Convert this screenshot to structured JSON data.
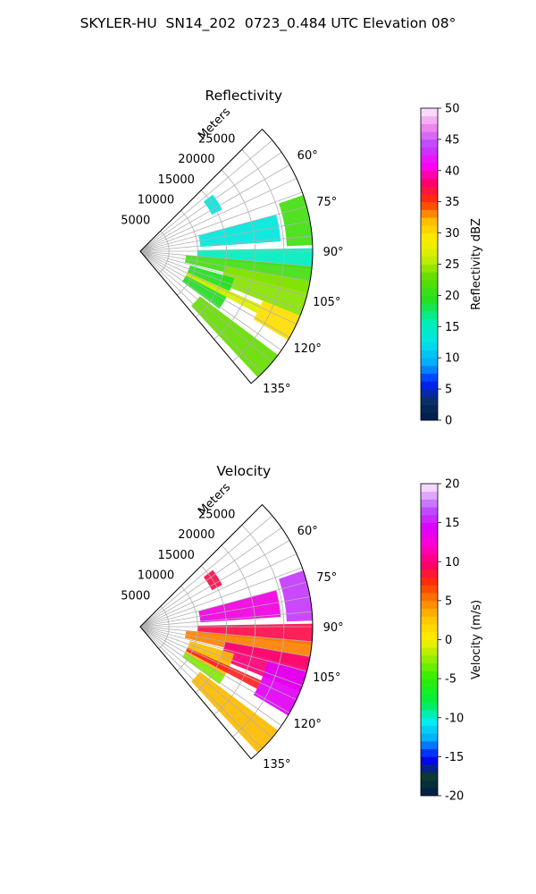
{
  "title": "SKYLER-HU  SN14_202  0723_0.484 UTC Elevation 08°",
  "chart_data": [
    {
      "type": "heatmap",
      "projection": "polar-sector",
      "title": "Reflectivity",
      "range_label": "Meters",
      "range_ticks": [
        5000,
        10000,
        15000,
        20000,
        25000
      ],
      "range_max": 30000,
      "azimuth_range": [
        45,
        140
      ],
      "azimuth_ticks": [
        60,
        75,
        90,
        105,
        120,
        135
      ],
      "azimuth_tick_labels": [
        "60°",
        "75°",
        "90°",
        "105°",
        "120°",
        "135°"
      ],
      "colorbar": {
        "label": "Reflectivity dBZ",
        "min": 0,
        "max": 50,
        "ticks": [
          0,
          5,
          10,
          15,
          20,
          25,
          30,
          35,
          40,
          45,
          50
        ],
        "colormap": "pyart_NWSRef"
      },
      "grid": true,
      "echo_regions": [
        {
          "az": [
            52,
            63
          ],
          "range": [
            14000,
            16000
          ],
          "value": 13
        },
        {
          "az": [
            75,
            86
          ],
          "range": [
            10500,
            24500
          ],
          "value": 13
        },
        {
          "az": [
            71,
            88
          ],
          "range": [
            25500,
            30000
          ],
          "value": 21
        },
        {
          "az": [
            89,
            96
          ],
          "range": [
            10000,
            30000
          ],
          "value": 15
        },
        {
          "az": [
            95,
            104
          ],
          "range": [
            8000,
            30000
          ],
          "value": 21
        },
        {
          "az": [
            100,
            112
          ],
          "range": [
            15000,
            30000
          ],
          "value": 24
        },
        {
          "az": [
            112,
            121
          ],
          "range": [
            23000,
            30000
          ],
          "value": 30
        },
        {
          "az": [
            106,
            121
          ],
          "range": [
            9000,
            17000
          ],
          "value": 19
        },
        {
          "az": [
            114,
            118
          ],
          "range": [
            9000,
            23000
          ],
          "value": 27
        },
        {
          "az": [
            120,
            126
          ],
          "range": [
            9000,
            17000
          ],
          "value": 19
        },
        {
          "az": [
            127,
            137
          ],
          "range": [
            13000,
            30000
          ],
          "value": 23
        }
      ]
    },
    {
      "type": "heatmap",
      "projection": "polar-sector",
      "title": "Velocity",
      "range_label": "Meters",
      "range_ticks": [
        5000,
        10000,
        15000,
        20000,
        25000
      ],
      "range_max": 30000,
      "azimuth_range": [
        45,
        140
      ],
      "azimuth_ticks": [
        60,
        75,
        90,
        105,
        120,
        135
      ],
      "azimuth_tick_labels": [
        "60°",
        "75°",
        "90°",
        "105°",
        "120°",
        "135°"
      ],
      "colorbar": {
        "label": "Velocity (m/s)",
        "min": -20,
        "max": 20,
        "ticks": [
          -20,
          -15,
          -10,
          -5,
          0,
          5,
          10,
          15,
          20
        ],
        "colormap": "pyart_NWSVel"
      },
      "grid": true,
      "echo_regions": [
        {
          "az": [
            52,
            63
          ],
          "range": [
            14000,
            16000
          ],
          "value": 9
        },
        {
          "az": [
            75,
            86
          ],
          "range": [
            10500,
            24500
          ],
          "value": 13
        },
        {
          "az": [
            71,
            88
          ],
          "range": [
            25500,
            30000
          ],
          "value": 16
        },
        {
          "az": [
            89,
            96
          ],
          "range": [
            10000,
            30000
          ],
          "value": 9
        },
        {
          "az": [
            95,
            104
          ],
          "range": [
            8000,
            30000
          ],
          "value": 5
        },
        {
          "az": [
            100,
            112
          ],
          "range": [
            15000,
            30000
          ],
          "value": 10
        },
        {
          "az": [
            105,
            121
          ],
          "range": [
            23000,
            30000
          ],
          "value": 14
        },
        {
          "az": [
            106,
            121
          ],
          "range": [
            9000,
            17000
          ],
          "value": 3
        },
        {
          "az": [
            114,
            118
          ],
          "range": [
            9000,
            23000
          ],
          "value": 8
        },
        {
          "az": [
            120,
            126
          ],
          "range": [
            9000,
            17000
          ],
          "value": -3
        },
        {
          "az": [
            127,
            137
          ],
          "range": [
            13000,
            30000
          ],
          "value": 3
        }
      ]
    }
  ]
}
